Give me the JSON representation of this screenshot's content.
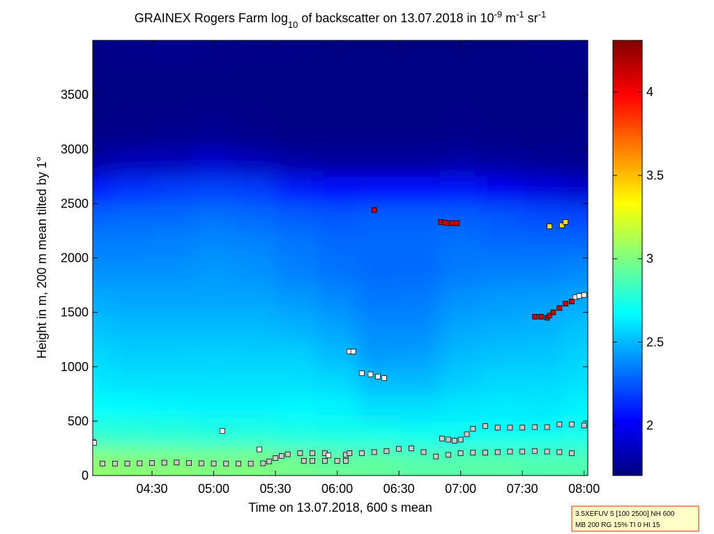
{
  "chart_data": {
    "type": "heatmap",
    "title_parts": [
      {
        "text": "GRAINEX Rogers Farm log",
        "shift": "none"
      },
      {
        "text": "10",
        "shift": "sub"
      },
      {
        "text": " of backscatter on 13.07.2018 in 10",
        "shift": "none"
      },
      {
        "text": "-9",
        "shift": "sup"
      },
      {
        "text": " m",
        "shift": "none"
      },
      {
        "text": "-1",
        "shift": "sup"
      },
      {
        "text": " sr",
        "shift": "none"
      },
      {
        "text": "-1",
        "shift": "sup"
      }
    ],
    "xlabel": "Time on 13.07.2018, 600 s mean",
    "ylabel": "Height in m, 200 m mean tilted by 1°",
    "x": [
      4.0,
      4.33,
      4.67,
      5.0,
      5.33,
      5.67,
      6.0,
      6.33,
      6.67,
      7.0,
      7.33,
      7.67,
      8.0
    ],
    "heights": [
      125,
      375,
      625,
      875,
      1125,
      1375,
      1625,
      1875,
      2125,
      2375,
      2625,
      2875,
      3125,
      3375,
      3625,
      3875
    ],
    "values": [
      [
        3.05,
        3.03,
        3.02,
        3.0,
        3.0,
        2.97,
        2.94,
        2.93,
        2.9,
        2.9,
        2.9,
        2.88,
        2.88
      ],
      [
        2.8,
        2.79,
        2.78,
        2.77,
        2.77,
        2.75,
        2.74,
        2.73,
        2.71,
        2.71,
        2.71,
        2.71,
        2.73
      ],
      [
        2.68,
        2.67,
        2.66,
        2.65,
        2.65,
        2.66,
        2.65,
        2.6,
        2.6,
        2.62,
        2.63,
        2.62,
        2.65
      ],
      [
        2.62,
        2.6,
        2.6,
        2.6,
        2.6,
        2.6,
        2.58,
        2.5,
        2.5,
        2.55,
        2.58,
        2.58,
        2.6
      ],
      [
        2.58,
        2.55,
        2.55,
        2.56,
        2.55,
        2.55,
        2.5,
        2.42,
        2.43,
        2.5,
        2.52,
        2.53,
        2.56
      ],
      [
        2.52,
        2.5,
        2.5,
        2.5,
        2.5,
        2.48,
        2.44,
        2.38,
        2.38,
        2.45,
        2.47,
        2.48,
        2.52
      ],
      [
        2.46,
        2.45,
        2.45,
        2.45,
        2.45,
        2.42,
        2.38,
        2.33,
        2.34,
        2.4,
        2.42,
        2.43,
        2.45
      ],
      [
        2.4,
        2.4,
        2.4,
        2.42,
        2.4,
        2.36,
        2.32,
        2.3,
        2.3,
        2.34,
        2.36,
        2.36,
        2.38
      ],
      [
        2.35,
        2.35,
        2.36,
        2.38,
        2.37,
        2.33,
        2.3,
        2.3,
        2.3,
        2.32,
        2.3,
        2.3,
        2.3
      ],
      [
        2.28,
        2.3,
        2.3,
        2.32,
        2.3,
        2.27,
        2.25,
        2.27,
        2.27,
        2.27,
        2.25,
        2.22,
        2.2
      ],
      [
        2.1,
        2.15,
        2.18,
        2.2,
        2.18,
        2.1,
        2.05,
        2.05,
        2.05,
        2.08,
        2.0,
        1.95,
        1.9
      ],
      [
        1.8,
        1.85,
        1.85,
        1.9,
        1.85,
        1.8,
        1.78,
        1.78,
        1.78,
        1.8,
        1.78,
        1.76,
        1.75
      ],
      [
        1.72,
        1.73,
        1.74,
        1.75,
        1.73,
        1.72,
        1.72,
        1.72,
        1.72,
        1.73,
        1.72,
        1.72,
        1.73
      ],
      [
        1.71,
        1.72,
        1.72,
        1.73,
        1.72,
        1.71,
        1.71,
        1.71,
        1.71,
        1.72,
        1.71,
        1.71,
        1.72
      ],
      [
        1.71,
        1.71,
        1.71,
        1.71,
        1.71,
        1.71,
        1.71,
        1.71,
        1.71,
        1.71,
        1.71,
        1.71,
        1.71
      ],
      [
        1.72,
        1.73,
        1.74,
        1.73,
        1.72,
        1.72,
        1.71,
        1.71,
        1.71,
        1.71,
        1.71,
        1.72,
        1.73
      ]
    ],
    "xlim": [
      4.02,
      8.03
    ],
    "xticks": [
      {
        "value": 4.5,
        "label": "04:30"
      },
      {
        "value": 5.0,
        "label": "05:00"
      },
      {
        "value": 5.5,
        "label": "05:30"
      },
      {
        "value": 6.0,
        "label": "06:00"
      },
      {
        "value": 6.5,
        "label": "06:30"
      },
      {
        "value": 7.0,
        "label": "07:00"
      },
      {
        "value": 7.5,
        "label": "07:30"
      },
      {
        "value": 8.0,
        "label": "08:00"
      }
    ],
    "ylim": [
      0,
      4000
    ],
    "yticks": [
      0,
      500,
      1000,
      1500,
      2000,
      2500,
      3000,
      3500
    ],
    "colormap": "jet",
    "clim": [
      1.7,
      4.31
    ],
    "cticks": [
      2,
      2.5,
      3,
      3.5,
      4
    ],
    "markers": [
      {
        "color": "#c8c8c8",
        "x": [
          4.0,
          4.1,
          4.2,
          4.3,
          4.4,
          4.5,
          4.6,
          4.7,
          4.8,
          4.9,
          5.0,
          5.1,
          5.2,
          5.3,
          5.4,
          5.45,
          5.5,
          5.55,
          5.6,
          5.7,
          5.8,
          5.9,
          5.73,
          5.8,
          5.9,
          6.0,
          6.07,
          6.07,
          6.1,
          6.2,
          6.3,
          6.4,
          6.5,
          6.6,
          6.7,
          6.8,
          6.9,
          7.0,
          7.1,
          7.2,
          7.3,
          7.4,
          7.5,
          7.6,
          7.7,
          7.8,
          7.9,
          6.85,
          6.9,
          6.95,
          7.0,
          7.05,
          7.1,
          7.2,
          7.3,
          7.4,
          7.5,
          7.6,
          7.7,
          7.8,
          7.9,
          8.0
        ],
        "y": [
          110,
          110,
          110,
          110,
          112,
          115,
          118,
          120,
          115,
          112,
          110,
          110,
          110,
          110,
          112,
          130,
          160,
          180,
          195,
          205,
          205,
          205,
          135,
          135,
          135,
          135,
          135,
          190,
          205,
          205,
          215,
          225,
          245,
          250,
          215,
          175,
          190,
          205,
          210,
          210,
          215,
          220,
          220,
          225,
          220,
          215,
          205,
          340,
          330,
          320,
          330,
          380,
          430,
          455,
          440,
          440,
          440,
          445,
          445,
          470,
          470,
          460
        ]
      },
      {
        "color": "#ffffff",
        "x": [
          4.02,
          4.03,
          5.07,
          5.37,
          5.93,
          6.1,
          6.13,
          6.2,
          6.27,
          6.33,
          6.38,
          7.93,
          7.96,
          8.0
        ],
        "y": [
          310,
          300,
          410,
          240,
          185,
          1140,
          1140,
          940,
          930,
          910,
          895,
          1640,
          1650,
          1660
        ]
      },
      {
        "color": "#cc0000",
        "x": [
          6.3,
          6.84,
          6.87,
          6.9,
          6.93,
          6.97,
          7.6,
          7.65,
          7.7,
          7.72,
          7.75,
          7.8,
          7.85,
          7.9
        ],
        "y": [
          2440,
          2330,
          2325,
          2320,
          2320,
          2320,
          1460,
          1460,
          1450,
          1470,
          1500,
          1540,
          1580,
          1600
        ]
      },
      {
        "color": "#ffdd00",
        "x": [
          7.72,
          7.82,
          7.85
        ],
        "y": [
          2290,
          2300,
          2330
        ]
      }
    ]
  },
  "info_box": {
    "lines": [
      "3.5XEFUV 5 [100 2500] NH 600",
      "MB 200 RG 15% TI 0 HI 15"
    ]
  }
}
